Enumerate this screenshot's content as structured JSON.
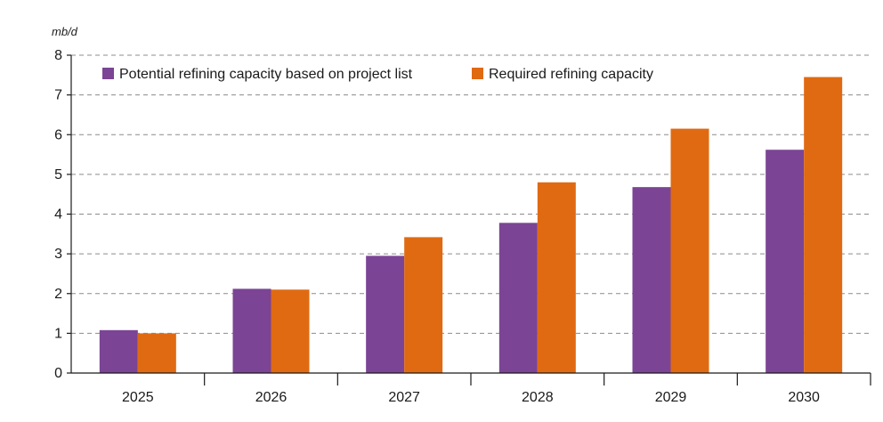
{
  "chart_data": {
    "type": "bar",
    "unit": "mb/d",
    "categories": [
      "2025",
      "2026",
      "2027",
      "2028",
      "2029",
      "2030"
    ],
    "series": [
      {
        "name": "Potential refining capacity based on project list",
        "color": "#7b4494",
        "values": [
          1.08,
          2.12,
          2.95,
          3.78,
          4.68,
          5.62
        ]
      },
      {
        "name": "Required refining capacity",
        "color": "#e06a12",
        "values": [
          1.0,
          2.1,
          3.42,
          4.8,
          6.15,
          7.45
        ]
      }
    ],
    "ylim": [
      0,
      8
    ],
    "yticks": [
      "0",
      "1",
      "2",
      "3",
      "4",
      "5",
      "6",
      "7",
      "8"
    ],
    "grid": "horizontal dashed",
    "legend_position": "top-left"
  }
}
